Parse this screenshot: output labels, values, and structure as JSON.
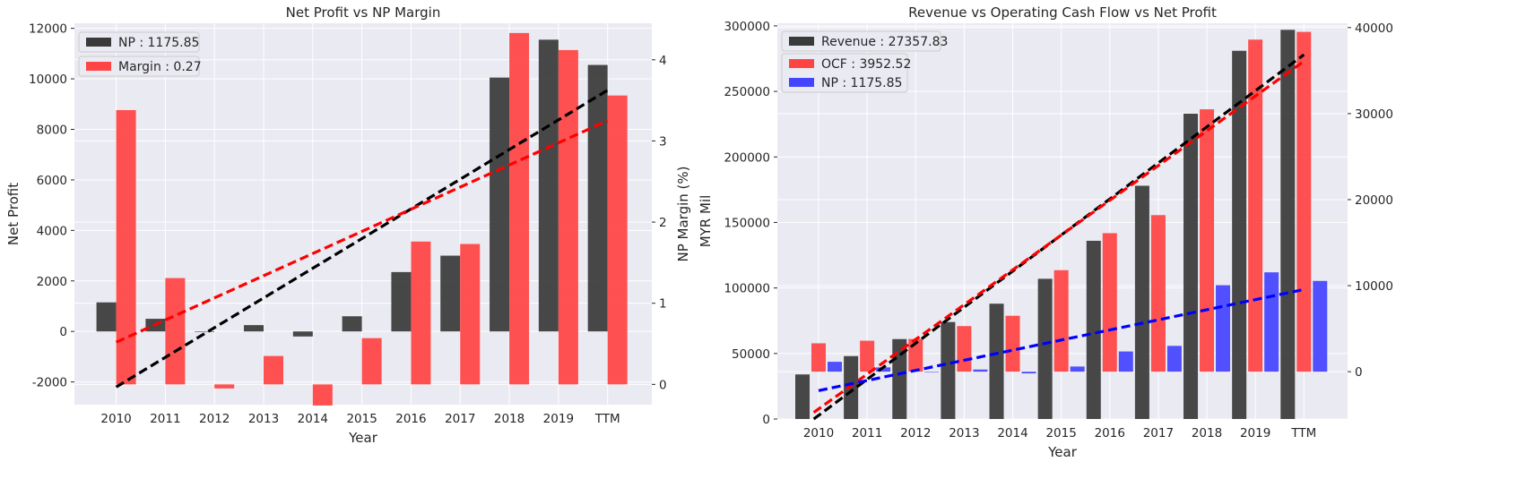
{
  "chart_data": [
    {
      "type": "bar",
      "title": "Net Profit vs NP Margin",
      "xlabel": "Year",
      "ylabel": "Net Profit",
      "y2label": "NP Margin (%)",
      "categories": [
        "2010",
        "2011",
        "2012",
        "2013",
        "2014",
        "2015",
        "2016",
        "2017",
        "2018",
        "2019",
        "TTM"
      ],
      "ylim": [
        -2900,
        12200
      ],
      "yticks": [
        -2000,
        0,
        2000,
        4000,
        6000,
        8000,
        10000,
        12000
      ],
      "y2lim": [
        -0.25,
        4.45
      ],
      "y2ticks": [
        0,
        1,
        2,
        3,
        4
      ],
      "grid": true,
      "legend_position": "top-left",
      "series": [
        {
          "name": "NP : 1175.85",
          "axis": "left",
          "color": "#3a3a3a",
          "values": [
            1150,
            500,
            0,
            250,
            -200,
            600,
            2350,
            3000,
            10050,
            11550,
            10550
          ]
        },
        {
          "name": "Margin : 0.27",
          "axis": "right",
          "color": "#ff4444",
          "values": [
            3.38,
            1.31,
            -0.05,
            0.35,
            -0.26,
            0.57,
            1.76,
            1.73,
            4.33,
            4.12,
            3.56
          ]
        }
      ],
      "trendlines": [
        {
          "axis": "left",
          "color": "#000000",
          "from": [
            0,
            -2200
          ],
          "to": [
            10,
            9550
          ]
        },
        {
          "axis": "right",
          "color": "#ff0000",
          "from": [
            0,
            0.52
          ],
          "to": [
            10,
            3.25
          ]
        }
      ]
    },
    {
      "type": "bar",
      "title": "Revenue vs Operating Cash Flow vs Net Profit",
      "xlabel": "Year",
      "ylabel": "MYR Mil",
      "categories": [
        "2010",
        "2011",
        "2012",
        "2013",
        "2014",
        "2015",
        "2016",
        "2017",
        "2018",
        "2019",
        "TTM"
      ],
      "ylim": [
        0,
        302000
      ],
      "yticks": [
        0,
        50000,
        100000,
        150000,
        200000,
        250000,
        300000
      ],
      "y2lim": [
        -5500,
        40500
      ],
      "y2ticks": [
        0,
        10000,
        20000,
        30000,
        40000
      ],
      "grid": true,
      "legend_position": "top-left",
      "series": [
        {
          "name": "Revenue : 27357.83",
          "axis": "left",
          "color": "#3a3a3a",
          "values": [
            34000,
            48000,
            61000,
            74000,
            88000,
            107000,
            136000,
            178000,
            233000,
            281000,
            297000
          ]
        },
        {
          "name": "OCF : 3952.52",
          "axis": "right",
          "color": "#ff4444",
          "values": [
            3300,
            3600,
            3800,
            5300,
            6500,
            11800,
            16100,
            18200,
            30500,
            38600,
            39500
          ]
        },
        {
          "name": "NP : 1175.85",
          "axis": "right",
          "color": "#4444ff",
          "values": [
            1150,
            500,
            0,
            250,
            -200,
            600,
            2350,
            3000,
            10050,
            11550,
            10550
          ]
        }
      ],
      "trendlines": [
        {
          "axis": "left",
          "color": "#000000",
          "from": [
            -0.1,
            0
          ],
          "to": [
            10,
            278000
          ]
        },
        {
          "axis": "left",
          "color": "#ff0000",
          "from": [
            -0.1,
            5000
          ],
          "to": [
            10,
            273000
          ]
        },
        {
          "axis": "right",
          "color": "#0000ff",
          "from": [
            0,
            -2200
          ],
          "to": [
            10,
            9550
          ]
        }
      ]
    }
  ]
}
